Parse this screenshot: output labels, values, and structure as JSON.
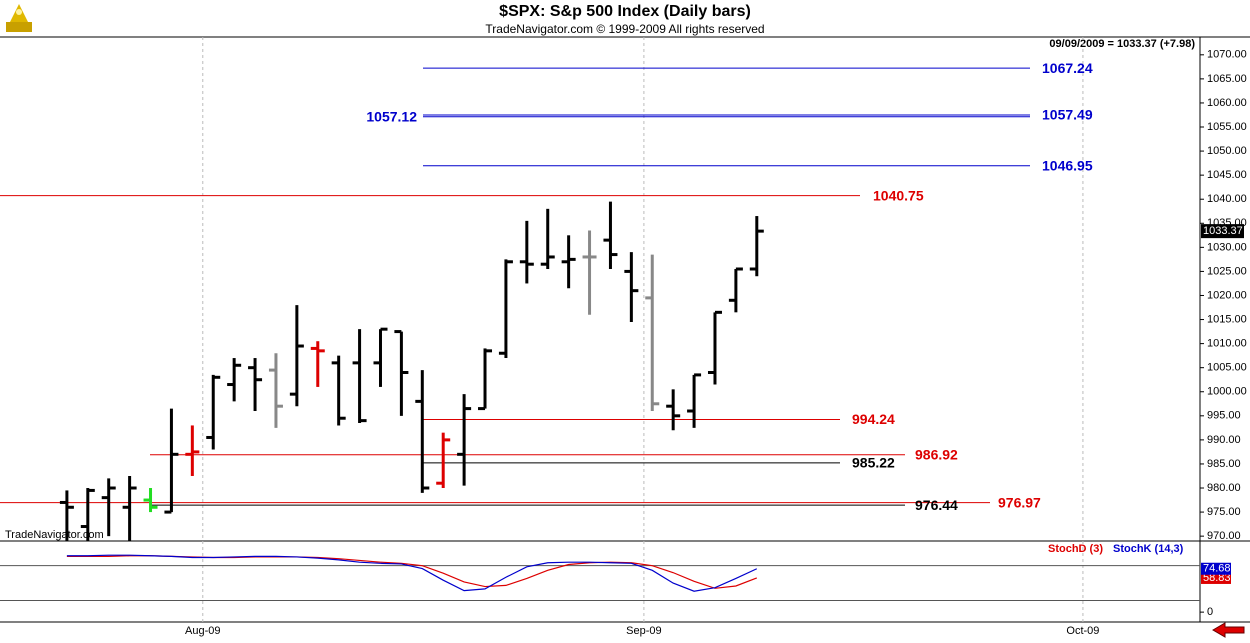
{
  "header": {
    "title": "$SPX:  S&p 500 Index  (Daily bars)",
    "subtitle": "TradeNavigator.com © 1999-2009 All rights reserved",
    "info": "09/09/2009 = 1033.37 (+7.98)",
    "watermark": "TradeNavigator.com"
  },
  "chart_data": [
    {
      "type": "ohlc",
      "xlim": [
        -3.2,
        54.2
      ],
      "xticks": [
        {
          "value": 6.5,
          "label": "Aug-09"
        },
        {
          "value": 27.6,
          "label": "Sep-09"
        },
        {
          "value": 48.6,
          "label": "Oct-09"
        }
      ],
      "ylim": [
        969.2,
        1073.7
      ],
      "yticks": [
        {
          "value": 970,
          "label": "970.00"
        },
        {
          "value": 975,
          "label": "975.00"
        },
        {
          "value": 980,
          "label": "980.00"
        },
        {
          "value": 985,
          "label": "985.00"
        },
        {
          "value": 990,
          "label": "990.00"
        },
        {
          "value": 995,
          "label": "995.00"
        },
        {
          "value": 1000,
          "label": "1000.00"
        },
        {
          "value": 1005,
          "label": "1005.00"
        },
        {
          "value": 1010,
          "label": "1010.00"
        },
        {
          "value": 1015,
          "label": "1015.00"
        },
        {
          "value": 1020,
          "label": "1020.00"
        },
        {
          "value": 1025,
          "label": "1025.00"
        },
        {
          "value": 1030,
          "label": "1030.00"
        },
        {
          "value": 1035,
          "label": "1035.00"
        },
        {
          "value": 1040,
          "label": "1040.00"
        },
        {
          "value": 1045,
          "label": "1045.00"
        },
        {
          "value": 1050,
          "label": "1050.00"
        },
        {
          "value": 1055,
          "label": "1055.00"
        },
        {
          "value": 1060,
          "label": "1060.00"
        },
        {
          "value": 1065,
          "label": "1065.00"
        },
        {
          "value": 1070,
          "label": "1070.00"
        }
      ],
      "open": [
        977,
        972,
        978,
        976,
        977.5,
        975,
        987,
        990.5,
        1001.5,
        1005,
        1004.5,
        999.5,
        1009,
        1006,
        1006,
        1006,
        1012.5,
        998,
        981,
        987,
        996.5,
        1008,
        1027,
        1026.5,
        1027,
        1028,
        1031.5,
        1025,
        1019.5,
        997,
        996,
        1004,
        1019,
        1025.5
      ],
      "high": [
        979.5,
        980,
        982,
        982.5,
        980,
        996.5,
        993,
        1003.5,
        1007,
        1007,
        1008,
        1018,
        1010.5,
        1007.5,
        1013,
        1013,
        1012.5,
        1004.5,
        991.5,
        999.5,
        1009,
        1027.5,
        1035.5,
        1038,
        1032.5,
        1033.5,
        1039.5,
        1029,
        1028.5,
        1000.5,
        1003.5,
        1016.5,
        1025.5,
        1036.5
      ],
      "low": [
        969,
        969,
        970,
        969,
        975,
        975,
        982.5,
        988,
        998,
        996,
        992.5,
        997,
        1001,
        993,
        993.5,
        1001,
        995,
        979,
        980,
        980.5,
        996.5,
        1007,
        1022.5,
        1025.5,
        1021.5,
        1016,
        1025.5,
        1014.5,
        996,
        992,
        992.5,
        1001.5,
        1016.5,
        1024
      ],
      "close": [
        976,
        979.5,
        980,
        980,
        976,
        987,
        987.5,
        1003,
        1005.5,
        1002.5,
        997,
        1009.5,
        1008.5,
        994.5,
        994,
        1013,
        1004,
        980,
        990,
        996.5,
        1008.5,
        1027,
        1026.5,
        1028,
        1027.5,
        1028,
        1028.5,
        1021,
        997.5,
        995,
        1003.5,
        1016.5,
        1025.5,
        1033.37
      ],
      "colors": [
        "#000000",
        "#000000",
        "#000000",
        "#000000",
        "#22dd22",
        "#000000",
        "#dd0000",
        "#000000",
        "#000000",
        "#000000",
        "#888888",
        "#000000",
        "#dd0000",
        "#000000",
        "#000000",
        "#000000",
        "#000000",
        "#000000",
        "#dd0000",
        "#000000",
        "#000000",
        "#000000",
        "#000000",
        "#000000",
        "#000000",
        "#888888",
        "#000000",
        "#000000",
        "#888888",
        "#000000",
        "#000000",
        "#000000",
        "#000000",
        "#000000"
      ],
      "levels": [
        {
          "value": 1067.24,
          "color": "#0000cc"
        },
        {
          "value": 1057.49,
          "color": "#0000cc"
        },
        {
          "value": 1057.12,
          "color": "#0000cc"
        },
        {
          "value": 1046.95,
          "color": "#0000cc"
        },
        {
          "value": 1040.75,
          "color": "#dd0000"
        },
        {
          "value": 994.24,
          "color": "#dd0000"
        },
        {
          "value": 986.92,
          "color": "#dd0000"
        },
        {
          "value": 976.97,
          "color": "#dd0000"
        },
        {
          "value": 985.22,
          "color": "#000000"
        },
        {
          "value": 976.44,
          "color": "#000000"
        }
      ]
    },
    {
      "type": "line",
      "ylim": [
        -17,
        119
      ],
      "yticks": [
        0
      ],
      "guides": [
        80,
        20
      ],
      "series": [
        {
          "name": "StochD (3)",
          "color": "#dd0000",
          "values": [
            96,
            96,
            96,
            97,
            97,
            96,
            95,
            94,
            94,
            95,
            95,
            95,
            94,
            92,
            89,
            86,
            84,
            80,
            67,
            52,
            44,
            46,
            58,
            72,
            82,
            85,
            86,
            85,
            80,
            68,
            53,
            41,
            45,
            58.83
          ]
        },
        {
          "name": "StochK (14,3)",
          "color": "#0000cc",
          "values": [
            97,
            97,
            98,
            98,
            97,
            96,
            94,
            94,
            95,
            96,
            96,
            95,
            93,
            90,
            86,
            84,
            83,
            75,
            55,
            37,
            40,
            60,
            78,
            85,
            86,
            86,
            85,
            84,
            72,
            50,
            36,
            42,
            58,
            74.68
          ]
        }
      ]
    }
  ]
}
